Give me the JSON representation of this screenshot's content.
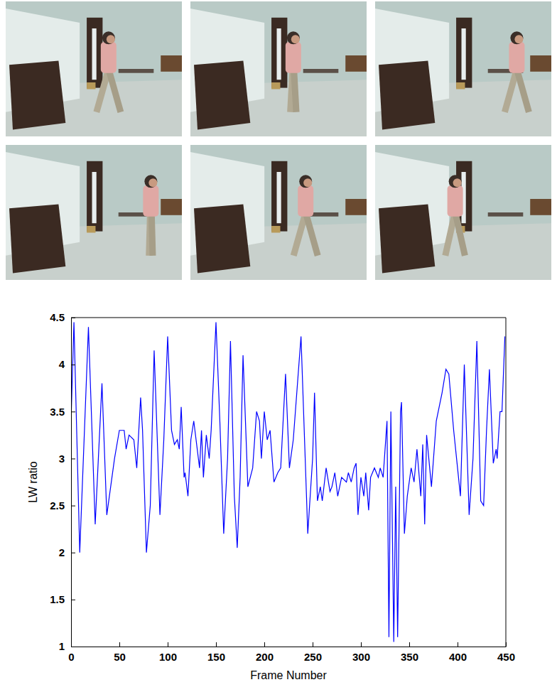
{
  "chart_data": {
    "type": "line",
    "x_label": "Frame Number",
    "y_label": "LW ratio",
    "color": "#0000ff",
    "grid": false,
    "xlim": [
      0,
      450
    ],
    "xticks": [
      0,
      50,
      100,
      150,
      200,
      250,
      300,
      350,
      400,
      450
    ],
    "ylim": [
      1,
      4.5
    ],
    "yticks": [
      1,
      1.5,
      2,
      2.5,
      3,
      3.5,
      4,
      4.5
    ],
    "x": [
      0,
      3,
      9,
      18,
      25,
      32,
      37,
      45,
      50,
      55,
      57,
      60,
      65,
      68,
      72,
      74,
      78,
      82,
      86,
      92,
      96,
      100,
      104,
      107,
      110,
      112,
      114,
      117,
      118,
      121,
      124,
      127,
      133,
      135,
      137,
      140,
      143,
      145,
      150,
      154,
      158,
      162,
      165,
      169,
      172,
      175,
      178,
      183,
      188,
      192,
      195,
      197,
      200,
      203,
      206,
      210,
      214,
      217,
      222,
      226,
      230,
      238,
      242,
      245,
      250,
      252,
      255,
      258,
      260,
      264,
      268,
      270,
      273,
      276,
      280,
      285,
      287,
      290,
      293,
      295,
      297,
      300,
      303,
      305,
      308,
      310,
      314,
      318,
      320,
      323,
      327,
      329,
      331,
      334,
      336,
      338,
      341,
      342,
      345,
      348,
      352,
      355,
      358,
      362,
      364,
      366,
      368,
      373,
      378,
      384,
      388,
      391,
      396,
      400,
      403,
      407,
      412,
      416,
      420,
      424,
      427,
      430,
      433,
      437,
      440,
      441,
      444,
      446,
      449
    ],
    "values": [
      3.4,
      4.45,
      2.0,
      4.4,
      2.3,
      3.8,
      2.4,
      3.0,
      3.3,
      3.3,
      3.1,
      3.25,
      3.2,
      2.9,
      3.65,
      3.3,
      2.0,
      2.5,
      4.15,
      2.4,
      3.2,
      4.3,
      3.3,
      3.15,
      3.2,
      3.1,
      3.55,
      2.8,
      2.85,
      2.6,
      3.2,
      3.4,
      2.9,
      3.3,
      2.8,
      3.25,
      3.0,
      3.3,
      4.45,
      3.4,
      2.2,
      3.0,
      4.25,
      2.6,
      2.05,
      2.8,
      4.1,
      2.7,
      2.9,
      3.5,
      3.4,
      3.0,
      3.5,
      3.2,
      3.3,
      2.75,
      2.85,
      2.9,
      3.9,
      2.9,
      3.2,
      4.3,
      3.1,
      2.2,
      3.0,
      3.7,
      2.55,
      2.7,
      2.55,
      2.9,
      2.65,
      2.7,
      2.85,
      2.6,
      2.8,
      2.75,
      2.85,
      2.75,
      2.9,
      2.95,
      2.4,
      2.8,
      2.6,
      2.85,
      2.45,
      2.8,
      2.9,
      2.8,
      2.9,
      2.8,
      3.4,
      1.1,
      3.5,
      1.05,
      2.7,
      1.1,
      3.5,
      3.6,
      2.2,
      2.6,
      2.9,
      2.75,
      3.1,
      2.6,
      3.15,
      2.3,
      3.25,
      2.7,
      3.4,
      3.7,
      3.95,
      3.9,
      3.3,
      2.9,
      2.6,
      4.0,
      2.4,
      3.0,
      4.25,
      2.55,
      2.5,
      3.3,
      3.95,
      2.95,
      3.1,
      3.0,
      3.5,
      3.5,
      4.3
    ]
  }
}
